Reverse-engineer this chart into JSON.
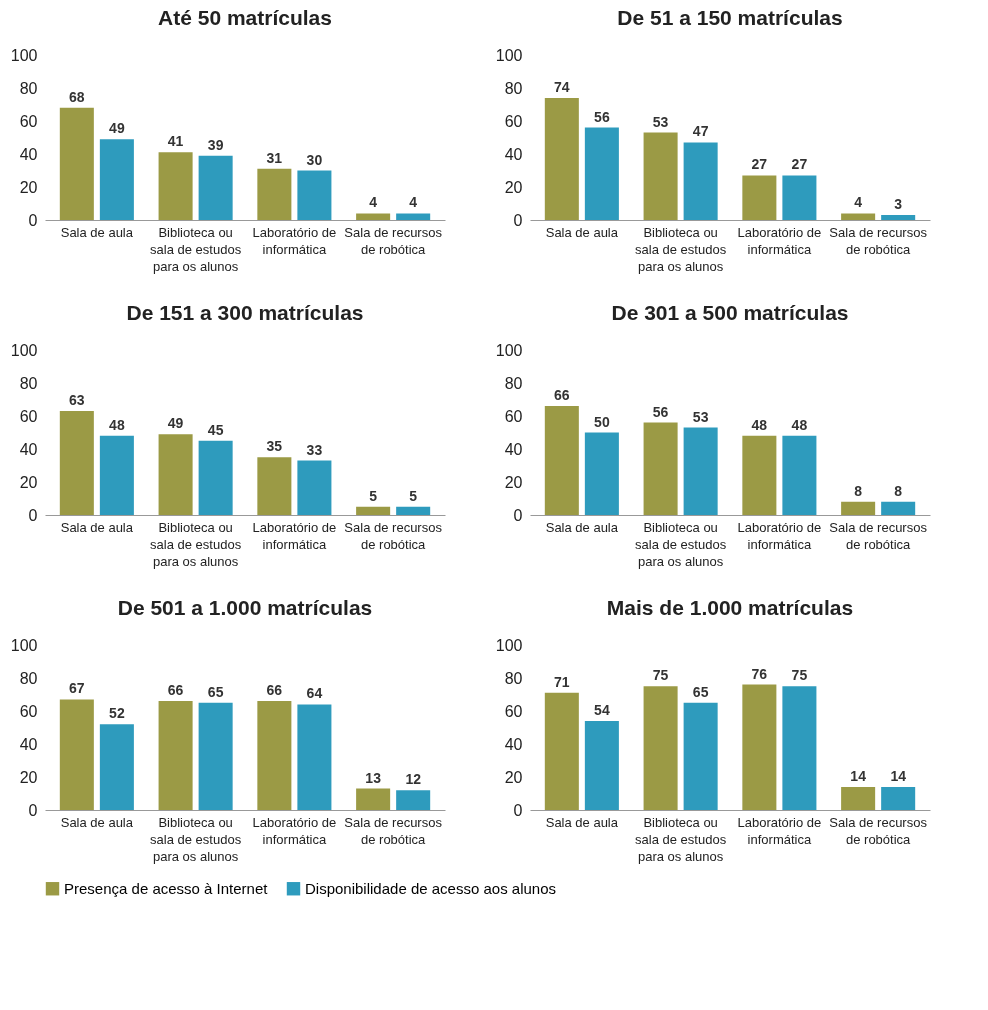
{
  "chart_data": [
    {
      "type": "bar",
      "title": "Até 50 matrículas",
      "categories": [
        "Sala de aula",
        "Biblioteca ou sala de estudos para os alunos",
        "Laboratório de informática",
        "Sala de recursos de robótica"
      ],
      "series": [
        {
          "name": "Presença de acesso à Internet",
          "color": "#9b9a45",
          "values": [
            68,
            41,
            31,
            4
          ]
        },
        {
          "name": "Disponibilidade de acesso aos alunos",
          "color": "#2e9bbd",
          "values": [
            49,
            39,
            30,
            4
          ]
        }
      ],
      "ylim": [
        0,
        100
      ],
      "yticks": [
        0,
        20,
        40,
        60,
        80,
        100
      ],
      "data_labels": true,
      "legend": "bottom"
    },
    {
      "type": "bar",
      "title": "De 51 a 150 matrículas",
      "categories": [
        "Sala de aula",
        "Biblioteca ou sala de estudos para os alunos",
        "Laboratório de informática",
        "Sala de recursos de robótica"
      ],
      "series": [
        {
          "name": "Presença de acesso à Internet",
          "color": "#9b9a45",
          "values": [
            74,
            53,
            27,
            4
          ]
        },
        {
          "name": "Disponibilidade de acesso aos alunos",
          "color": "#2e9bbd",
          "values": [
            56,
            47,
            27,
            3
          ]
        }
      ],
      "ylim": [
        0,
        100
      ],
      "yticks": [
        0,
        20,
        40,
        60,
        80,
        100
      ],
      "data_labels": true,
      "legend": "bottom"
    },
    {
      "type": "bar",
      "title": "De 151 a 300 matrículas",
      "categories": [
        "Sala de aula",
        "Biblioteca ou sala de estudos para os alunos",
        "Laboratório de informática",
        "Sala de recursos de robótica"
      ],
      "series": [
        {
          "name": "Presença de acesso à Internet",
          "color": "#9b9a45",
          "values": [
            63,
            49,
            35,
            5
          ]
        },
        {
          "name": "Disponibilidade de acesso aos alunos",
          "color": "#2e9bbd",
          "values": [
            48,
            45,
            33,
            5
          ]
        }
      ],
      "ylim": [
        0,
        100
      ],
      "yticks": [
        0,
        20,
        40,
        60,
        80,
        100
      ],
      "data_labels": true,
      "legend": "bottom"
    },
    {
      "type": "bar",
      "title": "De 301 a 500 matrículas",
      "categories": [
        "Sala de aula",
        "Biblioteca ou sala de estudos para os alunos",
        "Laboratório de informática",
        "Sala de recursos de robótica"
      ],
      "series": [
        {
          "name": "Presença de acesso à Internet",
          "color": "#9b9a45",
          "values": [
            66,
            56,
            48,
            8
          ]
        },
        {
          "name": "Disponibilidade de acesso aos alunos",
          "color": "#2e9bbd",
          "values": [
            50,
            53,
            48,
            8
          ]
        }
      ],
      "ylim": [
        0,
        100
      ],
      "yticks": [
        0,
        20,
        40,
        60,
        80,
        100
      ],
      "data_labels": true,
      "legend": "bottom"
    },
    {
      "type": "bar",
      "title": "De 501 a 1.000 matrículas",
      "categories": [
        "Sala de aula",
        "Biblioteca ou sala de estudos para os alunos",
        "Laboratório de informática",
        "Sala de recursos de robótica"
      ],
      "series": [
        {
          "name": "Presença de acesso à Internet",
          "color": "#9b9a45",
          "values": [
            67,
            66,
            66,
            13
          ]
        },
        {
          "name": "Disponibilidade de acesso aos alunos",
          "color": "#2e9bbd",
          "values": [
            52,
            65,
            64,
            12
          ]
        }
      ],
      "ylim": [
        0,
        100
      ],
      "yticks": [
        0,
        20,
        40,
        60,
        80,
        100
      ],
      "data_labels": true,
      "legend": "bottom"
    },
    {
      "type": "bar",
      "title": "Mais de 1.000 matrículas",
      "categories": [
        "Sala de aula",
        "Biblioteca ou sala de estudos para os alunos",
        "Laboratório de informática",
        "Sala de recursos de robótica"
      ],
      "series": [
        {
          "name": "Presença de acesso à Internet",
          "color": "#9b9a45",
          "values": [
            71,
            75,
            76,
            14
          ]
        },
        {
          "name": "Disponibilidade de acesso aos alunos",
          "color": "#2e9bbd",
          "values": [
            54,
            65,
            75,
            14
          ]
        }
      ],
      "ylim": [
        0,
        100
      ],
      "yticks": [
        0,
        20,
        40,
        60,
        80,
        100
      ],
      "data_labels": true,
      "legend": "bottom"
    }
  ]
}
